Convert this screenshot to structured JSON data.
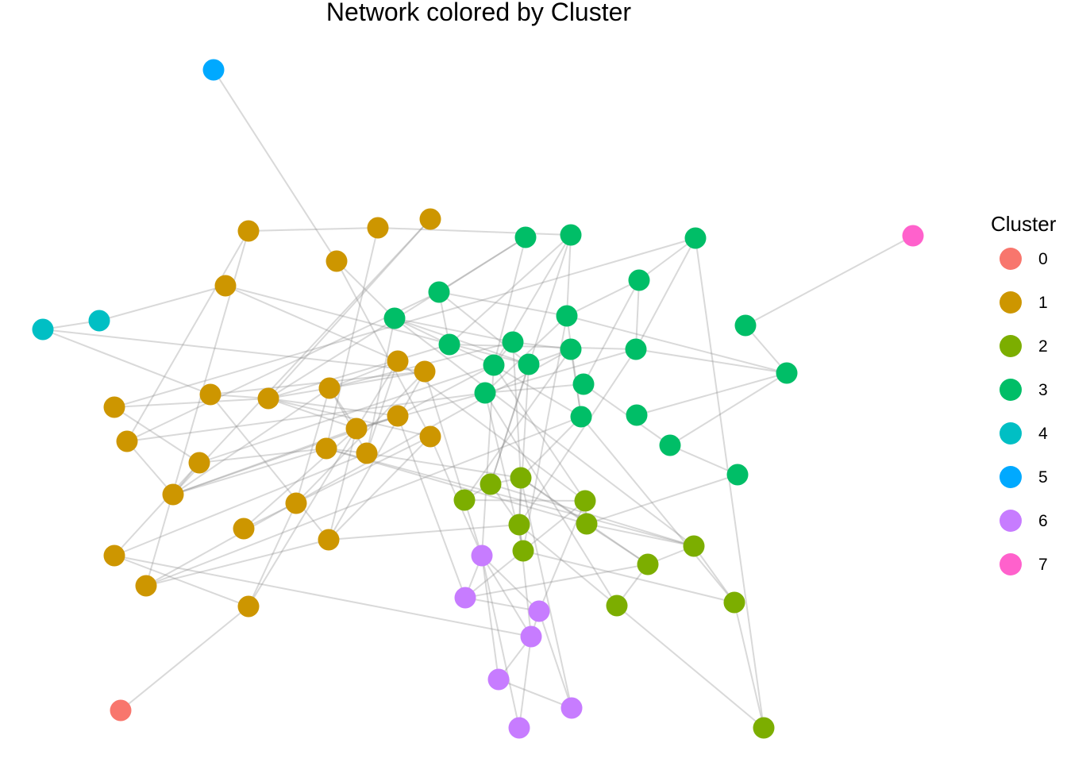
{
  "title": "Network colored by Cluster",
  "legend": {
    "title": "Cluster",
    "items": [
      {
        "label": "0",
        "color": "#F8766D"
      },
      {
        "label": "1",
        "color": "#CD9600"
      },
      {
        "label": "2",
        "color": "#7CAE00"
      },
      {
        "label": "3",
        "color": "#00BE67"
      },
      {
        "label": "4",
        "color": "#00BFC4"
      },
      {
        "label": "5",
        "color": "#00A9FF"
      },
      {
        "label": "6",
        "color": "#C77CFF"
      },
      {
        "label": "7",
        "color": "#FF61CC"
      }
    ]
  },
  "network": {
    "nodes": [
      {
        "id": "c5",
        "cluster": "5"
      },
      {
        "id": "c7",
        "cluster": "7"
      },
      {
        "id": "c0",
        "cluster": "0"
      },
      {
        "id": "c4a",
        "cluster": "4"
      },
      {
        "id": "c4b",
        "cluster": "4"
      },
      {
        "id": "a1",
        "cluster": "1"
      },
      {
        "id": "a2",
        "cluster": "1"
      },
      {
        "id": "a3",
        "cluster": "1"
      },
      {
        "id": "a4",
        "cluster": "1"
      },
      {
        "id": "a5",
        "cluster": "1"
      },
      {
        "id": "a6",
        "cluster": "1"
      },
      {
        "id": "a7",
        "cluster": "1"
      },
      {
        "id": "a8",
        "cluster": "1"
      },
      {
        "id": "a9",
        "cluster": "1"
      },
      {
        "id": "a10",
        "cluster": "1"
      },
      {
        "id": "a11",
        "cluster": "1"
      },
      {
        "id": "a12",
        "cluster": "1"
      },
      {
        "id": "a13",
        "cluster": "1"
      },
      {
        "id": "a14",
        "cluster": "1"
      },
      {
        "id": "a15",
        "cluster": "1"
      },
      {
        "id": "a16",
        "cluster": "1"
      },
      {
        "id": "a17",
        "cluster": "1"
      },
      {
        "id": "a18",
        "cluster": "1"
      },
      {
        "id": "a19",
        "cluster": "1"
      },
      {
        "id": "a20",
        "cluster": "1"
      },
      {
        "id": "a21",
        "cluster": "1"
      },
      {
        "id": "a22",
        "cluster": "1"
      },
      {
        "id": "a23",
        "cluster": "1"
      },
      {
        "id": "a24",
        "cluster": "1"
      },
      {
        "id": "a25",
        "cluster": "1"
      },
      {
        "id": "g1",
        "cluster": "3"
      },
      {
        "id": "g2",
        "cluster": "3"
      },
      {
        "id": "g3",
        "cluster": "3"
      },
      {
        "id": "g4",
        "cluster": "3"
      },
      {
        "id": "g5",
        "cluster": "3"
      },
      {
        "id": "g6",
        "cluster": "3"
      },
      {
        "id": "g7",
        "cluster": "3"
      },
      {
        "id": "g8",
        "cluster": "3"
      },
      {
        "id": "g9",
        "cluster": "3"
      },
      {
        "id": "g10",
        "cluster": "3"
      },
      {
        "id": "g11",
        "cluster": "3"
      },
      {
        "id": "g12",
        "cluster": "3"
      },
      {
        "id": "g13",
        "cluster": "3"
      },
      {
        "id": "g14",
        "cluster": "3"
      },
      {
        "id": "g15",
        "cluster": "3"
      },
      {
        "id": "g16",
        "cluster": "3"
      },
      {
        "id": "g17",
        "cluster": "3"
      },
      {
        "id": "g18",
        "cluster": "3"
      },
      {
        "id": "g19",
        "cluster": "3"
      },
      {
        "id": "g20",
        "cluster": "3"
      },
      {
        "id": "g21",
        "cluster": "3"
      },
      {
        "id": "l1",
        "cluster": "2"
      },
      {
        "id": "l2",
        "cluster": "2"
      },
      {
        "id": "l3",
        "cluster": "2"
      },
      {
        "id": "l4",
        "cluster": "2"
      },
      {
        "id": "l5",
        "cluster": "2"
      },
      {
        "id": "l6",
        "cluster": "2"
      },
      {
        "id": "l7",
        "cluster": "2"
      },
      {
        "id": "l8",
        "cluster": "2"
      },
      {
        "id": "l9",
        "cluster": "2"
      },
      {
        "id": "l10",
        "cluster": "2"
      },
      {
        "id": "l11",
        "cluster": "2"
      },
      {
        "id": "l12",
        "cluster": "2"
      },
      {
        "id": "p1",
        "cluster": "6"
      },
      {
        "id": "p2",
        "cluster": "6"
      },
      {
        "id": "p3",
        "cluster": "6"
      },
      {
        "id": "p4",
        "cluster": "6"
      },
      {
        "id": "p5",
        "cluster": "6"
      },
      {
        "id": "p6",
        "cluster": "6"
      },
      {
        "id": "p7",
        "cluster": "6"
      }
    ],
    "edges": [
      [
        "c5",
        "a2"
      ],
      [
        "c7",
        "g17"
      ],
      [
        "c0",
        "a23"
      ],
      [
        "c4a",
        "c4b"
      ],
      [
        "c4b",
        "a5"
      ],
      [
        "c4a",
        "a18"
      ],
      [
        "c4a",
        "a8"
      ],
      [
        "a1",
        "a3"
      ],
      [
        "a1",
        "a7"
      ],
      [
        "a1",
        "a25"
      ],
      [
        "a4",
        "a9"
      ],
      [
        "a4",
        "a12"
      ],
      [
        "a5",
        "a13"
      ],
      [
        "a5",
        "g10"
      ],
      [
        "a6",
        "a11"
      ],
      [
        "a6",
        "g3"
      ],
      [
        "a3",
        "g2"
      ],
      [
        "a3",
        "a15"
      ],
      [
        "a2",
        "a19"
      ],
      [
        "a2",
        "g6"
      ],
      [
        "a7",
        "a12"
      ],
      [
        "a7",
        "g4"
      ],
      [
        "a8",
        "a9"
      ],
      [
        "a8",
        "a18"
      ],
      [
        "a8",
        "a22"
      ],
      [
        "a9",
        "a10"
      ],
      [
        "a9",
        "a19"
      ],
      [
        "a9",
        "g7"
      ],
      [
        "a9",
        "a14"
      ],
      [
        "a10",
        "a14"
      ],
      [
        "a10",
        "a18"
      ],
      [
        "a10",
        "g8"
      ],
      [
        "a10",
        "a16"
      ],
      [
        "a11",
        "a15"
      ],
      [
        "a11",
        "a24"
      ],
      [
        "a11",
        "g9"
      ],
      [
        "a12",
        "a14"
      ],
      [
        "a12",
        "a17"
      ],
      [
        "a12",
        "a15"
      ],
      [
        "a13",
        "a16"
      ],
      [
        "a13",
        "l4"
      ],
      [
        "a14",
        "a22"
      ],
      [
        "a14",
        "a23"
      ],
      [
        "a15",
        "a16"
      ],
      [
        "a15",
        "l6"
      ],
      [
        "a16",
        "g6"
      ],
      [
        "a16",
        "a24"
      ],
      [
        "a17",
        "g9"
      ],
      [
        "a18",
        "a20"
      ],
      [
        "a18",
        "a22"
      ],
      [
        "a18",
        "l1"
      ],
      [
        "a19",
        "a22"
      ],
      [
        "a19",
        "p1"
      ],
      [
        "a20",
        "a23"
      ],
      [
        "a21",
        "a14"
      ],
      [
        "a22",
        "a25"
      ],
      [
        "a22",
        "l5"
      ],
      [
        "a23",
        "a24"
      ],
      [
        "a24",
        "p4"
      ],
      [
        "a25",
        "g16"
      ],
      [
        "a9",
        "a17"
      ],
      [
        "a10",
        "a13"
      ],
      [
        "a14",
        "g14"
      ],
      [
        "a16",
        "l3"
      ],
      [
        "a15",
        "l8"
      ],
      [
        "a6",
        "a9"
      ],
      [
        "a12",
        "a10"
      ],
      [
        "a11",
        "a12"
      ],
      [
        "a7",
        "g14"
      ],
      [
        "a19",
        "a21"
      ],
      [
        "a25",
        "g12"
      ],
      [
        "a17",
        "a14"
      ],
      [
        "a17",
        "p2"
      ],
      [
        "a13",
        "a14"
      ],
      [
        "a20",
        "a10"
      ],
      [
        "g1",
        "g9"
      ],
      [
        "g1",
        "g4"
      ],
      [
        "g1",
        "a9"
      ],
      [
        "g2",
        "g11"
      ],
      [
        "g2",
        "g7"
      ],
      [
        "g2",
        "g9"
      ],
      [
        "g3",
        "g5"
      ],
      [
        "g3",
        "g13"
      ],
      [
        "g3",
        "l12"
      ],
      [
        "g4",
        "g7"
      ],
      [
        "g4",
        "g11"
      ],
      [
        "g5",
        "g11"
      ],
      [
        "g5",
        "g15"
      ],
      [
        "g5",
        "g13"
      ],
      [
        "g6",
        "g7"
      ],
      [
        "g6",
        "g8"
      ],
      [
        "g6",
        "g10"
      ],
      [
        "g7",
        "g9"
      ],
      [
        "g7",
        "g13"
      ],
      [
        "g8",
        "g9"
      ],
      [
        "g8",
        "g12"
      ],
      [
        "g9",
        "g16"
      ],
      [
        "g9",
        "l4"
      ],
      [
        "g10",
        "g12"
      ],
      [
        "g10",
        "l2"
      ],
      [
        "g11",
        "g14"
      ],
      [
        "g11",
        "g18"
      ],
      [
        "g12",
        "g16"
      ],
      [
        "g13",
        "g14"
      ],
      [
        "g13",
        "g18"
      ],
      [
        "g14",
        "g15"
      ],
      [
        "g14",
        "l7"
      ],
      [
        "g15",
        "g20"
      ],
      [
        "g16",
        "l3"
      ],
      [
        "g16",
        "l11"
      ],
      [
        "g17",
        "g18"
      ],
      [
        "g18",
        "g20"
      ],
      [
        "g19",
        "g18"
      ],
      [
        "g20",
        "g21"
      ],
      [
        "g21",
        "l6"
      ],
      [
        "g9",
        "p1"
      ],
      [
        "g12",
        "l1"
      ],
      [
        "g11",
        "l7"
      ],
      [
        "g14",
        "l10"
      ],
      [
        "g16",
        "g11"
      ],
      [
        "g10",
        "l5"
      ],
      [
        "g8",
        "l3"
      ],
      [
        "g13",
        "l5"
      ],
      [
        "g4",
        "g10"
      ],
      [
        "g2",
        "l2"
      ],
      [
        "g6",
        "l8"
      ],
      [
        "l1",
        "l2"
      ],
      [
        "l1",
        "l4"
      ],
      [
        "l2",
        "l3"
      ],
      [
        "l2",
        "l5"
      ],
      [
        "l3",
        "l5"
      ],
      [
        "l3",
        "l6"
      ],
      [
        "l4",
        "l7"
      ],
      [
        "l4",
        "l6"
      ],
      [
        "l5",
        "l7"
      ],
      [
        "l5",
        "l10"
      ],
      [
        "l6",
        "l8"
      ],
      [
        "l6",
        "l9"
      ],
      [
        "l7",
        "l11"
      ],
      [
        "l8",
        "l11"
      ],
      [
        "l8",
        "l9"
      ],
      [
        "l9",
        "l10"
      ],
      [
        "l10",
        "l12"
      ],
      [
        "l11",
        "l12"
      ],
      [
        "l2",
        "l8"
      ],
      [
        "l3",
        "l9"
      ],
      [
        "l1",
        "p1"
      ],
      [
        "l4",
        "p3"
      ],
      [
        "l5",
        "p4"
      ],
      [
        "l7",
        "p2"
      ],
      [
        "p1",
        "p2"
      ],
      [
        "p1",
        "p3"
      ],
      [
        "p1",
        "p4"
      ],
      [
        "p1",
        "p5"
      ],
      [
        "p2",
        "p3"
      ],
      [
        "p3",
        "p4"
      ],
      [
        "p3",
        "p6"
      ],
      [
        "p4",
        "p5"
      ],
      [
        "p4",
        "p7"
      ],
      [
        "p5",
        "p6"
      ],
      [
        "p2",
        "l9"
      ],
      [
        "p6",
        "l3"
      ],
      [
        "p1",
        "p7"
      ]
    ]
  }
}
